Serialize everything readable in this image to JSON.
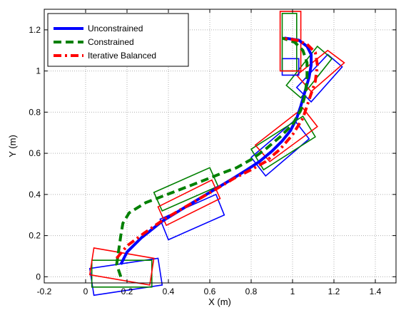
{
  "chart_data": {
    "type": "line",
    "xlabel": "X (m)",
    "ylabel": "Y (m)",
    "xlim": [
      -0.2,
      1.5
    ],
    "ylim": [
      -0.03,
      1.3
    ],
    "xticks": [
      -0.2,
      0,
      0.2,
      0.4,
      0.6,
      0.8,
      1,
      1.2,
      1.4
    ],
    "xtick_labels": [
      "-0.2",
      "0",
      "0.2",
      "0.4",
      "0.6",
      "0.8",
      "1",
      "1.2",
      "1.4"
    ],
    "yticks": [
      0,
      0.2,
      0.4,
      0.6,
      0.8,
      1,
      1.2
    ],
    "ytick_labels": [
      "0",
      "0.2",
      "0.4",
      "0.6",
      "0.8",
      "1",
      "1.2"
    ],
    "grid": true,
    "legend_position": "top-left",
    "series": [
      {
        "name": "Unconstrained",
        "color": "#0000ff",
        "dash": "solid",
        "x": [
          0.17,
          0.2,
          0.27,
          0.37,
          0.5,
          0.6,
          0.7,
          0.78,
          0.84,
          0.9,
          0.95,
          0.99,
          1.02,
          1.04,
          1.06,
          1.08,
          1.09,
          1.09,
          1.07,
          1.03,
          0.96
        ],
        "y": [
          0.06,
          0.12,
          0.19,
          0.27,
          0.35,
          0.41,
          0.47,
          0.52,
          0.56,
          0.61,
          0.66,
          0.71,
          0.77,
          0.83,
          0.9,
          0.97,
          1.03,
          1.08,
          1.12,
          1.15,
          1.16
        ]
      },
      {
        "name": "Constrained",
        "color": "#008000",
        "dash": "dashed",
        "x": [
          0.17,
          0.15,
          0.16,
          0.17,
          0.18,
          0.21,
          0.29,
          0.42,
          0.55,
          0.65,
          0.73,
          0.8,
          0.87,
          0.94,
          1.0,
          1.04,
          1.06,
          1.07,
          1.07,
          1.05,
          1.01,
          0.95
        ],
        "y": [
          0.0,
          0.06,
          0.13,
          0.2,
          0.26,
          0.31,
          0.36,
          0.41,
          0.46,
          0.5,
          0.53,
          0.57,
          0.62,
          0.68,
          0.74,
          0.81,
          0.88,
          0.96,
          1.04,
          1.1,
          1.14,
          1.16
        ]
      },
      {
        "name": "Iterative Balanced",
        "color": "#ff0000",
        "dash": "dashdot",
        "x": [
          0.15,
          0.2,
          0.28,
          0.38,
          0.5,
          0.62,
          0.72,
          0.8,
          0.87,
          0.94,
          1.0,
          1.05,
          1.08,
          1.11,
          1.12,
          1.11,
          1.07,
          1.02,
          0.95
        ],
        "y": [
          0.09,
          0.15,
          0.21,
          0.28,
          0.35,
          0.42,
          0.48,
          0.52,
          0.56,
          0.62,
          0.69,
          0.77,
          0.86,
          0.95,
          1.03,
          1.09,
          1.13,
          1.15,
          1.16
        ]
      }
    ],
    "vehicle_boxes": [
      {
        "color": "#0000ff",
        "corners": [
          [
            0.02,
            0.04
          ],
          [
            0.35,
            0.09
          ],
          [
            0.37,
            -0.04
          ],
          [
            0.04,
            -0.09
          ]
        ]
      },
      {
        "color": "#008000",
        "corners": [
          [
            0.03,
            0.08
          ],
          [
            0.32,
            0.08
          ],
          [
            0.32,
            -0.05
          ],
          [
            0.03,
            -0.05
          ]
        ]
      },
      {
        "color": "#ff0000",
        "corners": [
          [
            0.04,
            0.14
          ],
          [
            0.33,
            0.09
          ],
          [
            0.31,
            -0.04
          ],
          [
            0.02,
            0.01
          ]
        ]
      },
      {
        "color": "#0000ff",
        "corners": [
          [
            0.36,
            0.28
          ],
          [
            0.63,
            0.4
          ],
          [
            0.67,
            0.3
          ],
          [
            0.4,
            0.18
          ]
        ]
      },
      {
        "color": "#008000",
        "corners": [
          [
            0.33,
            0.41
          ],
          [
            0.6,
            0.53
          ],
          [
            0.64,
            0.44
          ],
          [
            0.37,
            0.32
          ]
        ]
      },
      {
        "color": "#ff0000",
        "corners": [
          [
            0.35,
            0.34
          ],
          [
            0.61,
            0.47
          ],
          [
            0.65,
            0.38
          ],
          [
            0.39,
            0.25
          ]
        ]
      },
      {
        "color": "#0000ff",
        "corners": [
          [
            0.8,
            0.58
          ],
          [
            1.01,
            0.76
          ],
          [
            1.08,
            0.67
          ],
          [
            0.87,
            0.49
          ]
        ]
      },
      {
        "color": "#008000",
        "corners": [
          [
            0.8,
            0.62
          ],
          [
            1.05,
            0.78
          ],
          [
            1.11,
            0.68
          ],
          [
            0.86,
            0.52
          ]
        ]
      },
      {
        "color": "#ff0000",
        "corners": [
          [
            0.82,
            0.64
          ],
          [
            1.05,
            0.82
          ],
          [
            1.12,
            0.73
          ],
          [
            0.89,
            0.56
          ]
        ]
      },
      {
        "color": "#0000ff",
        "corners": [
          [
            1.02,
            0.92
          ],
          [
            1.17,
            1.08
          ],
          [
            1.24,
            1.02
          ],
          [
            1.09,
            0.85
          ]
        ]
      },
      {
        "color": "#008000",
        "corners": [
          [
            0.97,
            0.93
          ],
          [
            1.12,
            1.12
          ],
          [
            1.19,
            1.06
          ],
          [
            1.04,
            0.87
          ]
        ]
      },
      {
        "color": "#ff0000",
        "corners": [
          [
            1.02,
            0.98
          ],
          [
            1.17,
            1.1
          ],
          [
            1.25,
            1.04
          ],
          [
            1.09,
            0.9
          ]
        ]
      },
      {
        "color": "#0000ff",
        "corners": [
          [
            0.95,
            1.06
          ],
          [
            1.03,
            1.06
          ],
          [
            1.03,
            0.98
          ],
          [
            0.95,
            0.98
          ]
        ]
      },
      {
        "color": "#008000",
        "corners": [
          [
            0.95,
            1.28
          ],
          [
            1.02,
            1.28
          ],
          [
            1.02,
            1.0
          ],
          [
            0.95,
            1.0
          ]
        ]
      },
      {
        "color": "#ff0000",
        "corners": [
          [
            0.94,
            1.29
          ],
          [
            1.04,
            1.29
          ],
          [
            1.04,
            1.0
          ],
          [
            0.94,
            1.0
          ]
        ]
      }
    ]
  }
}
